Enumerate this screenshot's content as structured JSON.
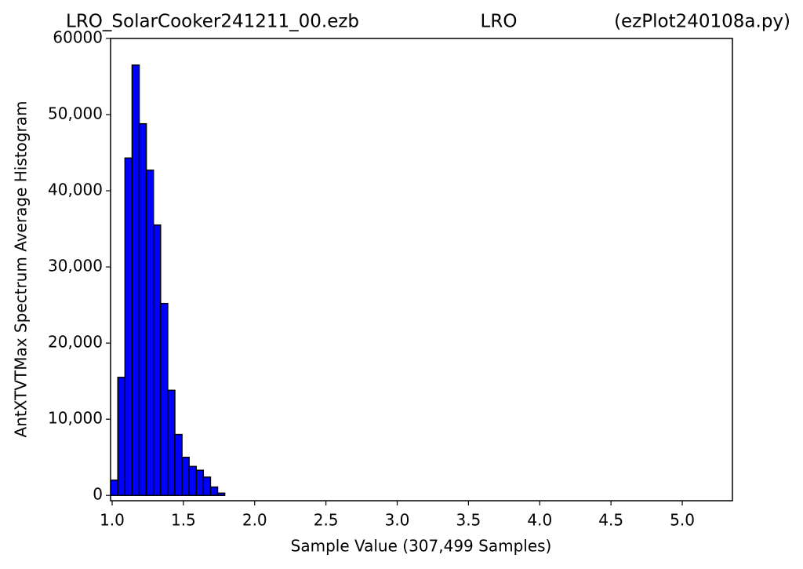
{
  "chart_data": {
    "type": "histogram",
    "title_left": "LRO_SolarCooker241211_00.ezb",
    "title_center": "LRO",
    "title_right": "(ezPlot240108a.py)",
    "x_label": "Sample Value (307,499 Samples)",
    "y_label": "AntXTVTMax Spectrum Average Histogram",
    "color": "#0000ff",
    "edge_color": "#000000",
    "bins": [
      0.99,
      1.04,
      1.09,
      1.14,
      1.19,
      1.24,
      1.29,
      1.34,
      1.39,
      1.44,
      1.49,
      1.54,
      1.59,
      1.64,
      1.69,
      1.74,
      1.79,
      1.84,
      1.89,
      1.94,
      1.99,
      2.04,
      2.09,
      2.14,
      2.19,
      2.24,
      2.29,
      2.34,
      2.39,
      2.44,
      2.49,
      2.54,
      2.59,
      2.64,
      2.69,
      2.74,
      2.79,
      2.84,
      2.89,
      2.94,
      2.99,
      3.04,
      3.09,
      3.14,
      3.19,
      3.24,
      3.29,
      3.34,
      3.39,
      3.44,
      3.49,
      3.54,
      3.59,
      3.64,
      3.69,
      3.74,
      3.79,
      3.84,
      3.89,
      3.94,
      3.99,
      4.04,
      4.09,
      4.14,
      4.19,
      4.24,
      4.29,
      4.34,
      4.39,
      4.44,
      4.49,
      4.54,
      4.59,
      4.64,
      4.69,
      4.74,
      4.79,
      4.84,
      4.89,
      4.94,
      4.99,
      5.04,
      5.09,
      5.14,
      5.19,
      5.24,
      5.29
    ],
    "values": [
      2000,
      15500,
      44300,
      56500,
      48800,
      42700,
      35500,
      25200,
      13800,
      8000,
      5000,
      3800,
      3300,
      2400,
      1100,
      300,
      0,
      0,
      0,
      0,
      0,
      0,
      0,
      0,
      0,
      0,
      0,
      0,
      0,
      0,
      0,
      0,
      0,
      0,
      0,
      0,
      0,
      0,
      0,
      0,
      0,
      0,
      0,
      0,
      0,
      0,
      0,
      0,
      0,
      0,
      0,
      0,
      0,
      0,
      0,
      0,
      0,
      0,
      0,
      0,
      0,
      0,
      0,
      0,
      0,
      0,
      0,
      0,
      0,
      0,
      0,
      0,
      0,
      0,
      0,
      0,
      0,
      0,
      0,
      0,
      0,
      0,
      0,
      0,
      0,
      0
    ],
    "xlim": [
      0.989,
      5.352
    ],
    "ylim": [
      -700,
      60000
    ],
    "xticks": [
      {
        "value": 1,
        "label": "1.0"
      },
      1.5,
      {
        "value": 2,
        "label": "2.0"
      },
      2.5,
      {
        "value": 3,
        "label": "3.0"
      },
      3.5,
      {
        "value": 4,
        "label": "4.0"
      },
      4.5,
      {
        "value": 5,
        "label": "5.0"
      }
    ],
    "yticks": [
      0,
      {
        "value": 10000,
        "label": "10,000"
      },
      {
        "value": 20000,
        "label": "20,000"
      },
      {
        "value": 30000,
        "label": "30,000"
      },
      {
        "value": 40000,
        "label": "40,000"
      },
      {
        "value": 50000,
        "label": "50,000"
      },
      60000
    ],
    "grid": false
  }
}
